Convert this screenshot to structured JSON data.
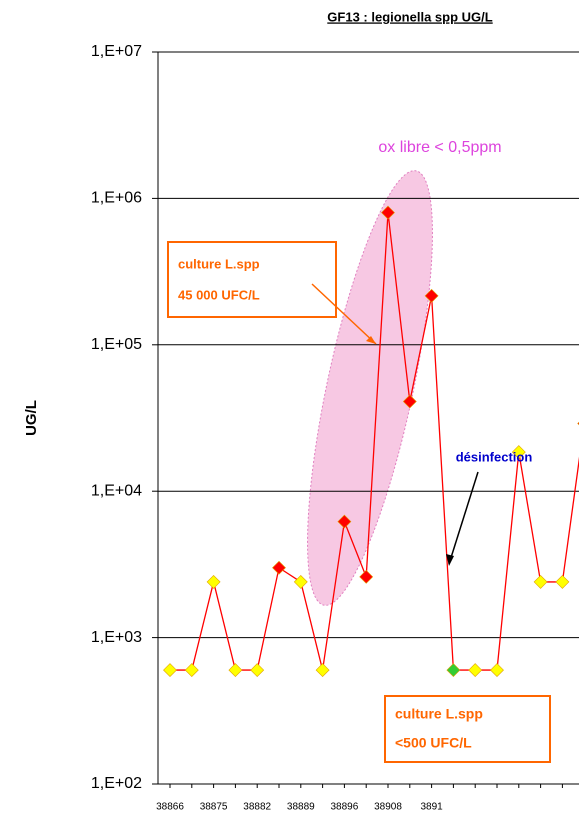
{
  "chart_data": {
    "type": "line",
    "title": "GF13 : legionella spp UG/L",
    "y_label": "UG/L",
    "categories": [
      "38866",
      null,
      "38875",
      null,
      "38882",
      null,
      "38889",
      null,
      "38896",
      null,
      "38908",
      null,
      "3891",
      null,
      null,
      null,
      null,
      null,
      null,
      null
    ],
    "series": [
      {
        "color": "#ff0000",
        "values": [
          600,
          600,
          2400,
          600,
          600,
          3000,
          2400,
          600,
          6200,
          2600,
          800000,
          41000,
          216000,
          600,
          600,
          600,
          18500,
          2400,
          2400,
          29000
        ],
        "point_colors": [
          "#ffff00",
          "#ffff00",
          "#ffff00",
          "#ffff00",
          "#ffff00",
          "#ff0000",
          "#ffff00",
          "#ffff00",
          "#ff0000",
          "#ff0000",
          "#ff0000",
          "#ff0000",
          "#ff0000",
          "#33cc33",
          "#ffff00",
          "#ffff00",
          "#ffff00",
          "#ffff00",
          "#ffff00",
          "#ff0000"
        ]
      }
    ],
    "log_scale": true,
    "grid": true,
    "ylim": [
      100,
      10000000
    ],
    "yticks": [
      {
        "value": 100,
        "label": "1,E+02"
      },
      {
        "value": 1000,
        "label": "1,E+03"
      },
      {
        "value": 10000,
        "label": "1,E+04"
      },
      {
        "value": 100000,
        "label": "1,E+05"
      },
      {
        "value": 1000000,
        "label": "1,E+06"
      },
      {
        "value": 10000000,
        "label": "1,E+07"
      }
    ],
    "annotations": {
      "ox": "ox libre < 0,5ppm",
      "culture_high": [
        "culture L.spp",
        "45 000 UFC/L"
      ],
      "desinfection": "désinfection",
      "culture_low": [
        "culture L.spp",
        "<500 UFC/L"
      ]
    }
  }
}
